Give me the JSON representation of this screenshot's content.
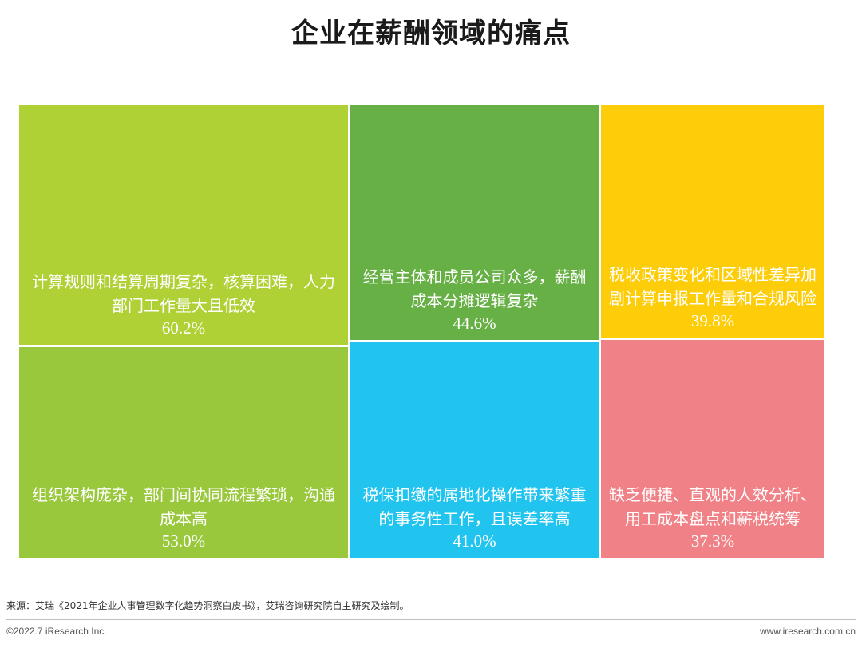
{
  "chart_data": {
    "type": "treemap",
    "title": "企业在薪酬领域的痛点",
    "unit": "%",
    "items": [
      {
        "label": "计算规则和结算周期复杂，核算困难，人力部门工作量大且低效",
        "value": 60.2,
        "value_text": "60.2%",
        "color": "#afd135"
      },
      {
        "label": "组织架构庞杂，部门间协同流程繁琐，沟通成本高",
        "value": 53.0,
        "value_text": "53.0%",
        "color": "#99c83c"
      },
      {
        "label": "经营主体和成员公司众多，薪酬成本分摊逻辑复杂",
        "value": 44.6,
        "value_text": "44.6%",
        "color": "#67b046"
      },
      {
        "label": "税保扣缴的属地化操作带来繁重的事务性工作，且误差率高",
        "value": 41.0,
        "value_text": "41.0%",
        "color": "#20c4ee"
      },
      {
        "label": "税收政策变化和区域性差异加剧计算申报工作量和合规风险",
        "value": 39.8,
        "value_text": "39.8%",
        "color": "#fecd0a"
      },
      {
        "label": "缺乏便捷、直观的人效分析、用工成本盘点和薪税统筹",
        "value": 37.3,
        "value_text": "37.3%",
        "color": "#f08287"
      }
    ]
  },
  "footer": {
    "source": "来源：艾瑞《2021年企业人事管理数字化趋势洞察白皮书》，艾瑞咨询研究院自主研究及绘制。",
    "copyright": "©2022.7 iResearch Inc.",
    "website": "www.iresearch.com.cn"
  }
}
